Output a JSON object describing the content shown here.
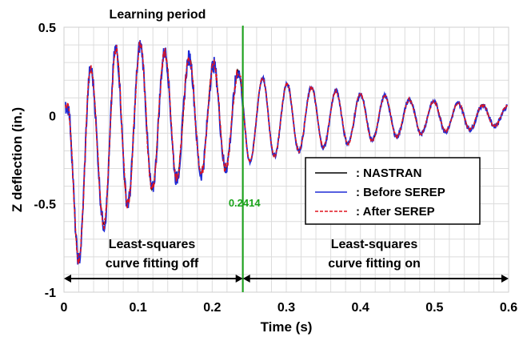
{
  "chart_data": {
    "type": "line",
    "xlabel": "Time (s)",
    "ylabel": "Z deflection (in.)",
    "xlim": [
      0,
      0.6
    ],
    "ylim": [
      -1,
      0.5
    ],
    "x_ticks": [
      "0",
      "0.1",
      "0.2",
      "0.3",
      "0.4",
      "0.5",
      "0.6"
    ],
    "y_ticks": [
      "0.5",
      "0",
      "-0.5",
      "-1"
    ],
    "grid": true,
    "legend_position": "right",
    "series": [
      {
        "name": ": NASTRAN",
        "color": "#000000",
        "style": "solid"
      },
      {
        "name": ": Before SEREP",
        "color": "#1f2bd6",
        "style": "solid"
      },
      {
        "name": ": After SEREP",
        "color": "#e0141e",
        "style": "dashed"
      }
    ],
    "signal_peaks": [
      [
        0.005,
        0.05
      ],
      [
        0.02,
        -0.82
      ],
      [
        0.036,
        0.26
      ],
      [
        0.054,
        -0.62
      ],
      [
        0.07,
        0.38
      ],
      [
        0.086,
        -0.5
      ],
      [
        0.103,
        0.4
      ],
      [
        0.119,
        -0.42
      ],
      [
        0.136,
        0.36
      ],
      [
        0.152,
        -0.36
      ],
      [
        0.169,
        0.33
      ],
      [
        0.185,
        -0.33
      ],
      [
        0.202,
        0.29
      ],
      [
        0.218,
        -0.3
      ],
      [
        0.235,
        0.25
      ],
      [
        0.251,
        -0.26
      ],
      [
        0.268,
        0.21
      ],
      [
        0.284,
        -0.23
      ],
      [
        0.301,
        0.18
      ],
      [
        0.317,
        -0.2
      ],
      [
        0.334,
        0.16
      ],
      [
        0.35,
        -0.18
      ],
      [
        0.367,
        0.14
      ],
      [
        0.383,
        -0.16
      ],
      [
        0.4,
        0.12
      ],
      [
        0.416,
        -0.14
      ],
      [
        0.433,
        0.11
      ],
      [
        0.449,
        -0.12
      ],
      [
        0.466,
        0.09
      ],
      [
        0.482,
        -0.1
      ],
      [
        0.499,
        0.08
      ],
      [
        0.515,
        -0.09
      ],
      [
        0.532,
        0.07
      ],
      [
        0.548,
        -0.08
      ],
      [
        0.565,
        0.06
      ],
      [
        0.581,
        -0.06
      ],
      [
        0.598,
        0.05
      ]
    ],
    "noise_until": 0.2414,
    "learning_marker": {
      "x": 0.2414,
      "label": "0.2414",
      "color": "#1aa31a"
    },
    "annotations": {
      "learning_period": "Learning period",
      "left_line1": "Least-squares",
      "left_line2": "curve fitting off",
      "right_line1": "Least-squares",
      "right_line2": "curve fitting on"
    }
  }
}
